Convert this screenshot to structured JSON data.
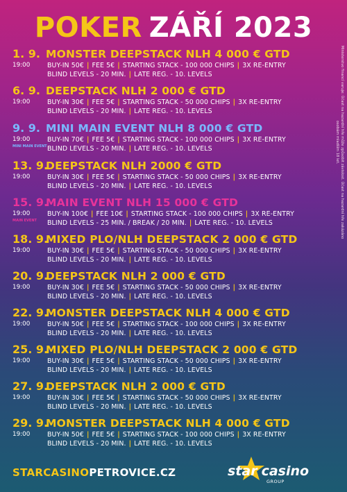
{
  "title": {
    "part1": "POKER",
    "part2": "ZÁŘÍ 2023"
  },
  "side_note": "Ministerstvo financí varuje: Účast na hazardní hře může způsobit závislost. Účast na hazardní hře zakázáno osobám mladším 18 let.",
  "separator": "|",
  "events": [
    {
      "date": "1. 9.",
      "name": "MONSTER DEEPSTACK NLH 4 000 € GTD",
      "time": "19:00",
      "tag": "",
      "color": "#f5c518",
      "line1": [
        "BUY-IN 50€",
        "FEE 5€",
        "STARTING STACK - 100 000 CHIPS",
        "3X RE-ENTRY"
      ],
      "line2": [
        "BLIND LEVELS - 20 MIN.",
        "LATE REG. - 10. LEVELS"
      ]
    },
    {
      "date": "6. 9.",
      "name": "DEEPSTACK NLH 2 000 € GTD",
      "time": "19:00",
      "tag": "",
      "color": "#f5c518",
      "line1": [
        "BUY-IN 30€",
        "FEE 5€",
        "STARTING STACK - 50 000 CHIPS",
        "3X RE-ENTRY"
      ],
      "line2": [
        "BLIND LEVELS - 20 MIN.",
        "LATE REG. - 10. LEVELS"
      ]
    },
    {
      "date": "9. 9.",
      "name": "MINI MAIN EVENT NLH 8 000 € GTD",
      "time": "19:00",
      "tag": "MINI MAIN EVENT",
      "color": "#7ab8ff",
      "line1": [
        "BUY-IN 70€",
        "FEE 5€",
        "STARTING STACK - 100 000 CHIPS",
        "3X RE-ENTRY"
      ],
      "line2": [
        "BLIND LEVELS - 20 MIN.",
        "LATE REG. - 10. LEVELS"
      ]
    },
    {
      "date": "13. 9.",
      "name": "DEEPSTACK NLH 2000 € GTD",
      "time": "19:00",
      "tag": "",
      "color": "#f5c518",
      "line1": [
        "BUY-IN 30€",
        "FEE 5€",
        "STARTING STACK - 50 000 CHIPS",
        "3X RE-ENTRY"
      ],
      "line2": [
        "BLIND LEVELS - 20 MIN.",
        "LATE REG. - 10. LEVELS"
      ]
    },
    {
      "date": "15. 9.",
      "name": "MAIN EVENT NLH 15 000 € GTD",
      "time": "19:00",
      "tag": "MAIN EVENT",
      "color": "#e8339a",
      "line1": [
        "BUY-IN 100€",
        "FEE 10€",
        "STARTING STACK - 100 000 CHIPS",
        "3X RE-ENTRY"
      ],
      "line2": [
        "BLIND LEVELS - 25 MIN. / BREAK / 20 MIN.",
        "LATE REG. - 10. LEVELS"
      ]
    },
    {
      "date": "18. 9.",
      "name": "MIXED PLO/NLH DEEPSTACK  2 000 € GTD",
      "time": "19:00",
      "tag": "",
      "color": "#f5c518",
      "line1": [
        "BUY-IN 30€",
        "FEE 5€",
        "STARTING STACK - 50 000 CHIPS",
        "3X RE-ENTRY"
      ],
      "line2": [
        "BLIND LEVELS - 20 MIN.",
        "LATE REG. - 10. LEVELS"
      ]
    },
    {
      "date": "20. 9.",
      "name": "DEEPSTACK NLH 2 000 € GTD",
      "time": "19:00",
      "tag": "",
      "color": "#f5c518",
      "line1": [
        "BUY-IN 30€",
        "FEE 5€",
        "STARTING STACK - 50 000 CHIPS",
        "3X RE-ENTRY"
      ],
      "line2": [
        "BLIND LEVELS - 20 MIN.",
        "LATE REG. - 10. LEVELS"
      ]
    },
    {
      "date": "22. 9.",
      "name": "MONSTER DEEPSTACK NLH 4 000 € GTD",
      "time": "19:00",
      "tag": "",
      "color": "#f5c518",
      "line1": [
        "BUY-IN 50€",
        "FEE 5€",
        "STARTING STACK - 100 000 CHIPS",
        "3X RE-ENTRY"
      ],
      "line2": [
        "BLIND LEVELS - 20 MIN.",
        "LATE REG. - 10. LEVELS"
      ]
    },
    {
      "date": "25. 9.",
      "name": "MIXED PLO/NLH DEEPSTACK 2 000 € GTD",
      "time": "19:00",
      "tag": "",
      "color": "#f5c518",
      "line1": [
        "BUY-IN 30€",
        "FEE 5€",
        "STARTING STACK - 50 000 CHIPS",
        "3X RE-ENTRY"
      ],
      "line2": [
        "BLIND LEVELS - 20 MIN.",
        "LATE REG. - 10. LEVELS"
      ]
    },
    {
      "date": "27. 9.",
      "name": "DEEPSTACK NLH 2 000 € GTD",
      "time": "19:00",
      "tag": "",
      "color": "#f5c518",
      "line1": [
        "BUY-IN 30€",
        "FEE 5€",
        "STARTING STACK - 50 000 CHIPS",
        "3X RE-ENTRY"
      ],
      "line2": [
        "BLIND LEVELS - 20 MIN.",
        "LATE REG. - 10. LEVELS"
      ]
    },
    {
      "date": "29. 9.",
      "name": "MONSTER DEEPSTACK NLH 4 000 € GTD",
      "time": "19:00",
      "tag": "",
      "color": "#f5c518",
      "line1": [
        "BUY-IN 50€",
        "FEE 5€",
        "STARTING STACK - 100 000 CHIPS",
        "3X RE-ENTRY"
      ],
      "line2": [
        "BLIND LEVELS - 20 MIN.",
        "LATE REG. - 10. LEVELS"
      ]
    }
  ],
  "footer": {
    "url_part1": "STARCASINO",
    "url_part2": "PETROVICE.CZ"
  },
  "logo": {
    "word1": "star",
    "word2": "casino",
    "sub": "GROUP",
    "star_color": "#f5c518"
  }
}
